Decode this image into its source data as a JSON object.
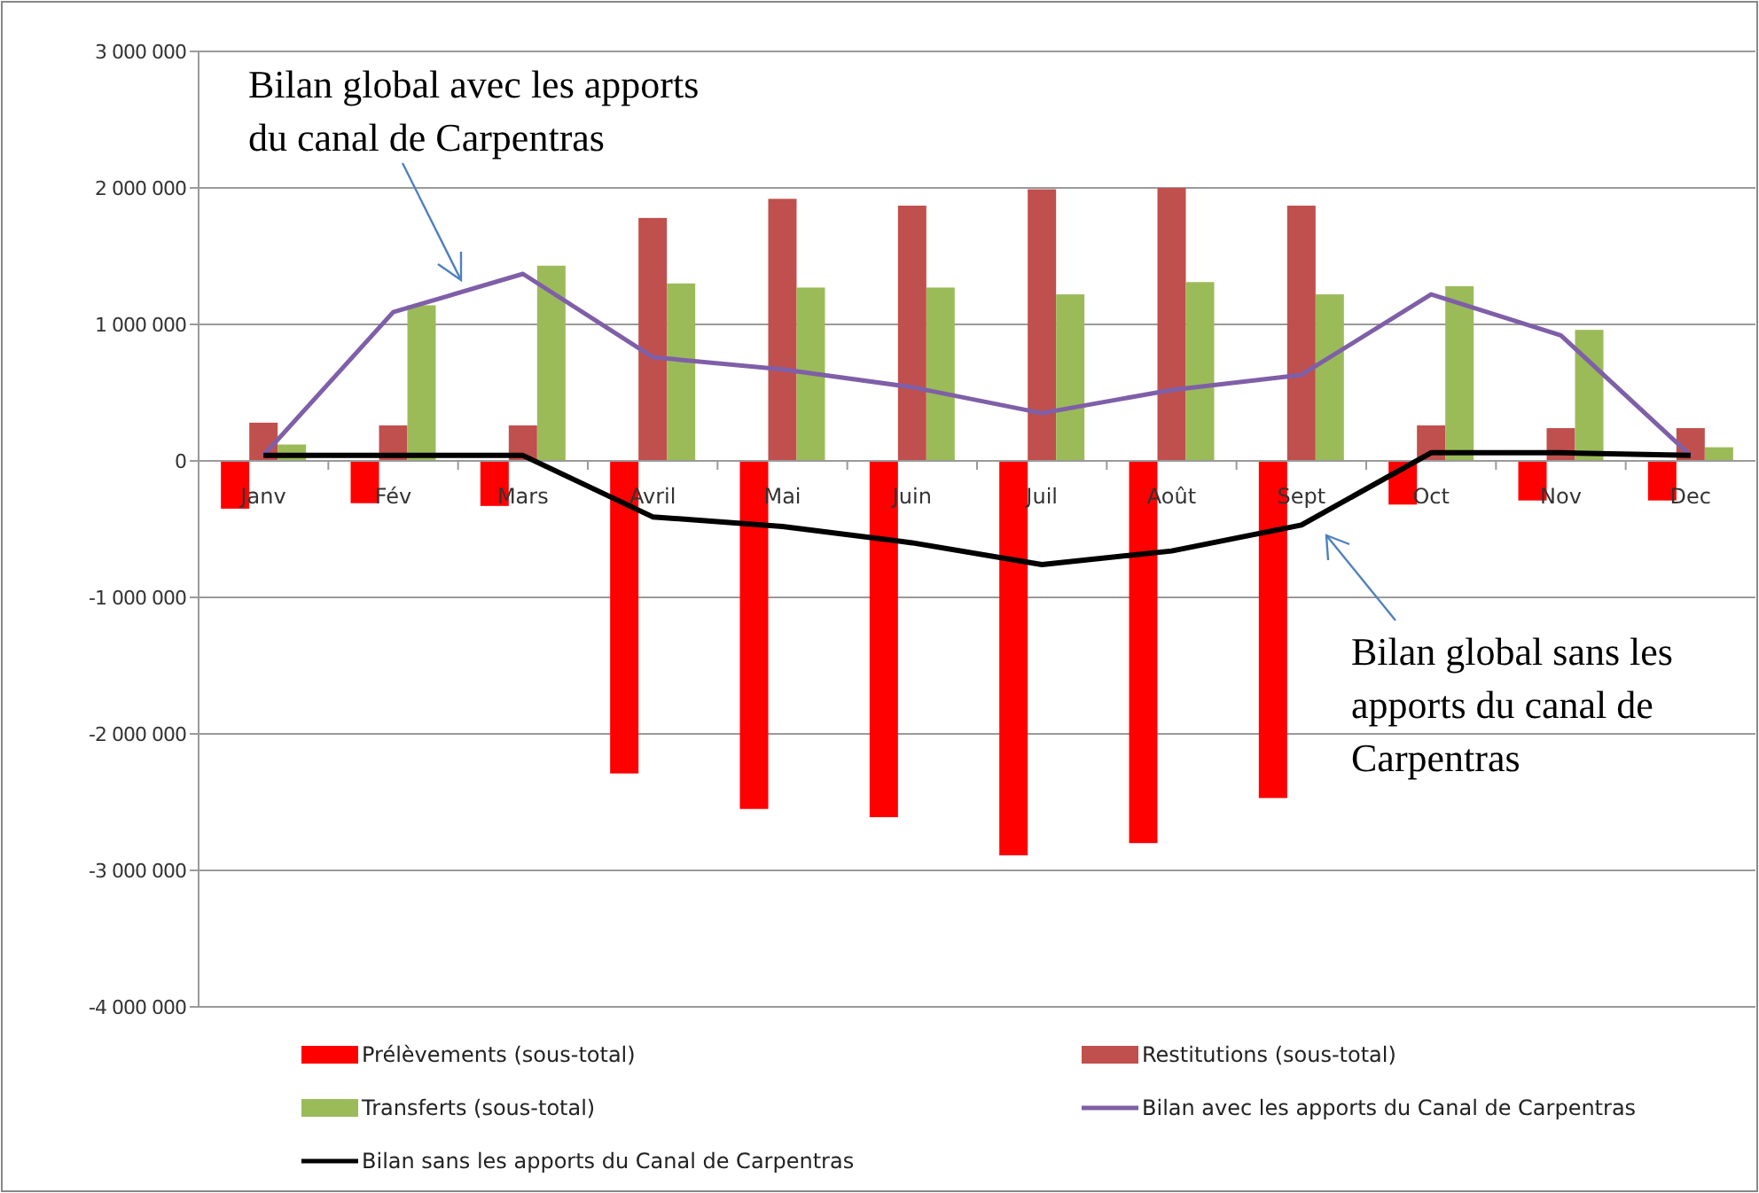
{
  "chart_data": {
    "type": "bar",
    "categories": [
      "Janv",
      "Fév",
      "Mars",
      "Avril",
      "Mai",
      "Juin",
      "Juil",
      "Août",
      "Sept",
      "Oct",
      "Nov",
      "Dec"
    ],
    "series": [
      {
        "name": "Prélèvements (sous-total)",
        "color": "#ff0000",
        "values": [
          -350000,
          -310000,
          -330000,
          -2290000,
          -2550000,
          -2610000,
          -2890000,
          -2800000,
          -2470000,
          -320000,
          -290000,
          -290000
        ]
      },
      {
        "name": "Restitutions (sous-total)",
        "color": "#c0504d",
        "values": [
          280000,
          260000,
          260000,
          1780000,
          1920000,
          1870000,
          1990000,
          2000000,
          1870000,
          260000,
          240000,
          240000
        ]
      },
      {
        "name": "Transferts (sous-total)",
        "color": "#9bbb59",
        "values": [
          120000,
          1140000,
          1430000,
          1300000,
          1270000,
          1270000,
          1220000,
          1310000,
          1220000,
          1280000,
          960000,
          100000
        ]
      },
      {
        "name": "Bilan avec les apports du Canal de Carpentras",
        "type": "line",
        "color": "#7f5fa8",
        "values": [
          40000,
          1090000,
          1370000,
          760000,
          670000,
          540000,
          350000,
          520000,
          630000,
          1220000,
          920000,
          40000
        ]
      },
      {
        "name": "Bilan sans les apports du Canal de Carpentras",
        "type": "line",
        "color": "#000000",
        "values": [
          40000,
          40000,
          40000,
          -410000,
          -480000,
          -600000,
          -760000,
          -660000,
          -470000,
          60000,
          60000,
          40000
        ]
      }
    ],
    "ylim": [
      -4000000,
      3000000
    ],
    "yticks": [
      {
        "value": -4000000,
        "label": "-4 000 000"
      },
      {
        "value": -3000000,
        "label": "-3 000 000"
      },
      {
        "value": -2000000,
        "label": "-2 000 000"
      },
      {
        "value": -1000000,
        "label": "-1 000 000"
      },
      0,
      {
        "value": 1000000,
        "label": "1 000 000"
      },
      {
        "value": 2000000,
        "label": "2 000 000"
      },
      {
        "value": 3000000,
        "label": "3 000 000"
      }
    ],
    "grid": "y",
    "legend": "bottom",
    "marker": "none",
    "line_style": "solid",
    "annotations": [
      "Bilan global avec les apports du canal de Carpentras",
      "Bilan global sans les apports du canal de Carpentras"
    ]
  }
}
